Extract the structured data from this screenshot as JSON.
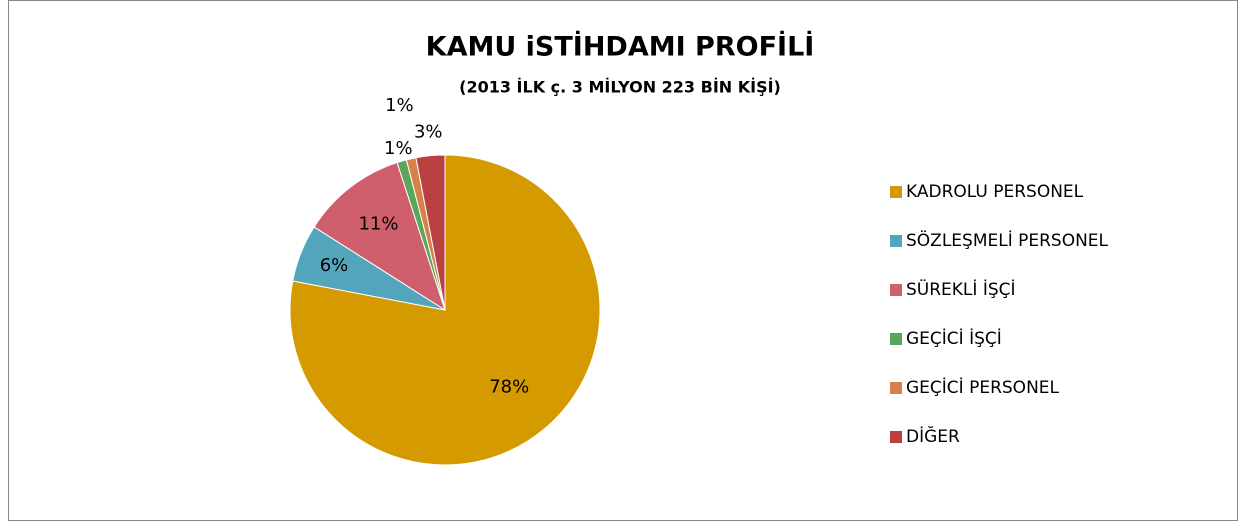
{
  "chart_data": {
    "type": "pie",
    "title": "KAMU iSTİHDAMI PROFİLİ",
    "subtitle": "(2013 İLK ç. 3 MİLYON 223 BİN KİŞİ)",
    "categories": [
      "KADROLU PERSONEL",
      "SÖZLEŞMELİ PERSONEL",
      "SÜREKLİ İŞÇİ",
      "GEÇİCİ İŞÇİ",
      "GEÇİCİ PERSONEL",
      "DİĞER"
    ],
    "values": [
      78,
      6,
      11,
      1,
      1,
      3
    ],
    "value_labels": [
      "78%",
      "6%",
      "11%",
      "1%",
      "1%",
      "3%"
    ],
    "colors": [
      "#d49a00",
      "#52a5ba",
      "#cf5f6c",
      "#5ba65b",
      "#d6804a",
      "#b84040"
    ],
    "legend": "right"
  }
}
